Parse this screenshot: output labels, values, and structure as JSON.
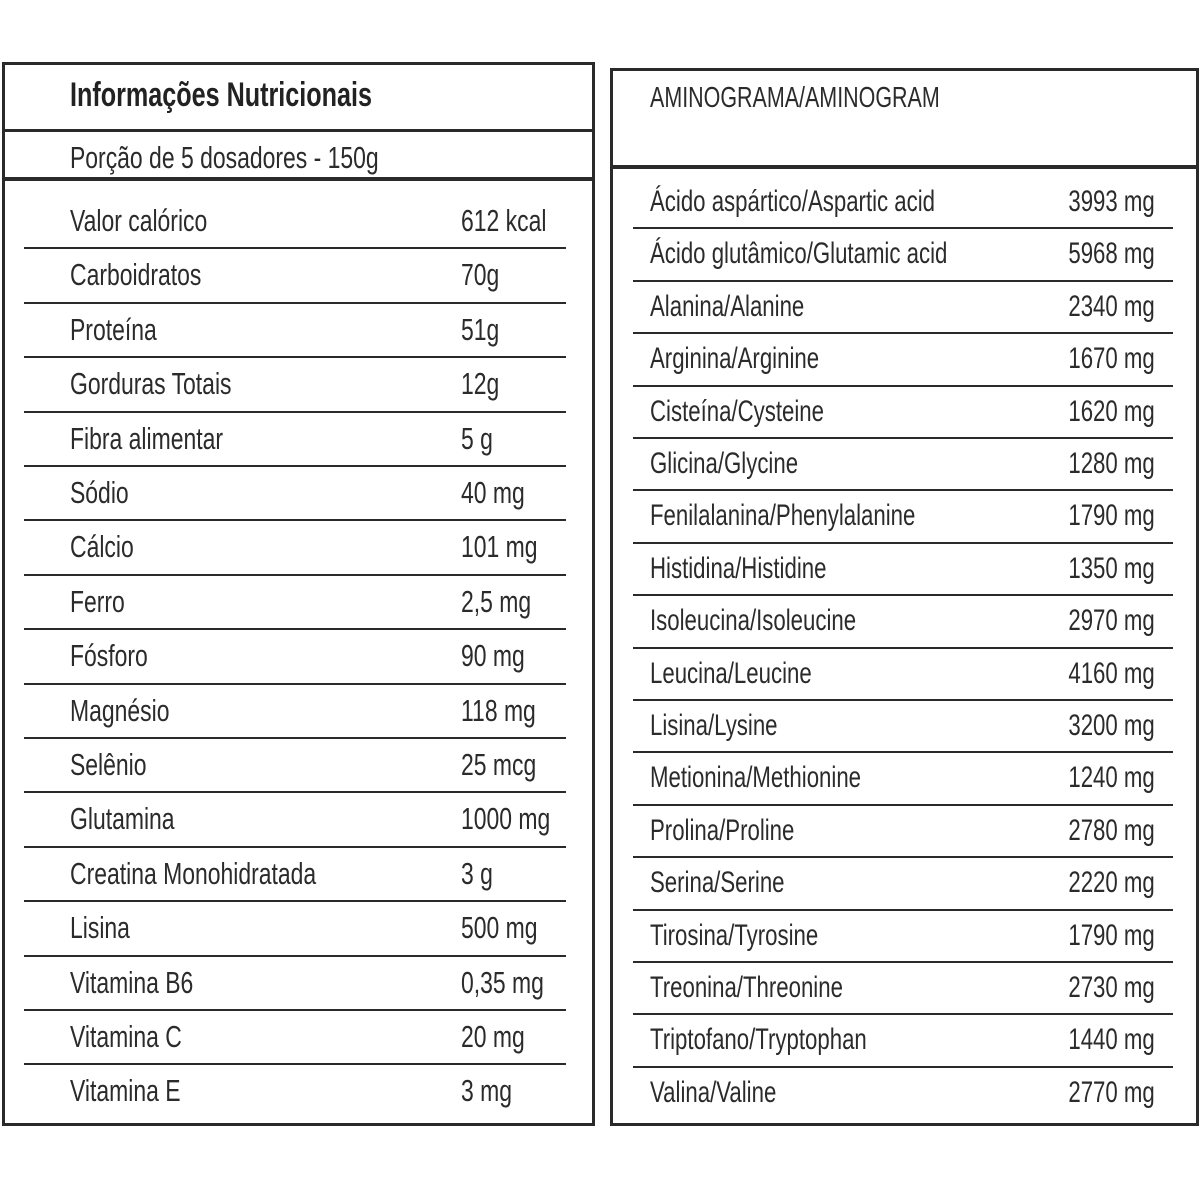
{
  "nutrition": {
    "title": "Informações Nutricionais",
    "subtitle": "Porção de 5 dosadores - 150g",
    "rows": [
      [
        "Valor calórico",
        "612 kcal"
      ],
      [
        "Carboidratos",
        "70g"
      ],
      [
        "Proteína",
        "51g"
      ],
      [
        "Gorduras Totais",
        "12g"
      ],
      [
        "Fibra alimentar",
        "5 g"
      ],
      [
        "Sódio",
        "40 mg"
      ],
      [
        "Cálcio",
        "101 mg"
      ],
      [
        "Ferro",
        "2,5 mg"
      ],
      [
        "Fósforo",
        "90 mg"
      ],
      [
        "Magnésio",
        "118 mg"
      ],
      [
        "Selênio",
        "25 mcg"
      ],
      [
        "Glutamina",
        "1000 mg"
      ],
      [
        "Creatina Monohidratada",
        "3 g"
      ],
      [
        "Lisina",
        "500 mg"
      ],
      [
        "Vitamina B6",
        "0,35 mg"
      ],
      [
        "Vitamina C",
        "20 mg"
      ],
      [
        "Vitamina E",
        "3 mg"
      ]
    ]
  },
  "aminogram": {
    "title": "AMINOGRAMA/AMINOGRAM",
    "rows": [
      [
        "Ácido aspártico/Aspartic acid",
        "3993 mg"
      ],
      [
        "Ácido glutâmico/Glutamic acid",
        "5968 mg"
      ],
      [
        "Alanina/Alanine",
        "2340 mg"
      ],
      [
        "Arginina/Arginine",
        "1670 mg"
      ],
      [
        "Cisteína/Cysteine",
        "1620 mg"
      ],
      [
        "Glicina/Glycine",
        "1280 mg"
      ],
      [
        "Fenilalanina/Phenylalanine",
        "1790 mg"
      ],
      [
        "Histidina/Histidine",
        "1350 mg"
      ],
      [
        "Isoleucina/Isoleucine",
        "2970 mg"
      ],
      [
        "Leucina/Leucine",
        "4160 mg"
      ],
      [
        "Lisina/Lysine",
        "3200 mg"
      ],
      [
        "Metionina/Methionine",
        "1240 mg"
      ],
      [
        "Prolina/Proline",
        "2780 mg"
      ],
      [
        "Serina/Serine",
        "2220 mg"
      ],
      [
        "Tirosina/Tyrosine",
        "1790 mg"
      ],
      [
        "Treonina/Threonine",
        "2730 mg"
      ],
      [
        "Triptofano/Tryptophan",
        "1440 mg"
      ],
      [
        "Valina/Valine",
        "2770 mg"
      ]
    ]
  }
}
